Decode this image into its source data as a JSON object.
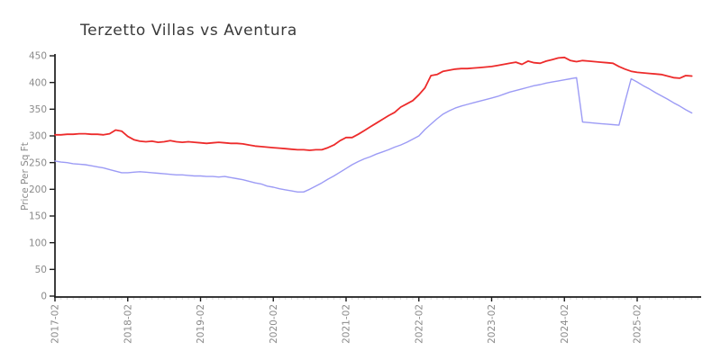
{
  "title": "Terzetto Villas vs Aventura",
  "chart_data": {
    "type": "line",
    "title": "Terzetto Villas vs Aventura",
    "xlabel": "",
    "ylabel": "Price Per Sq Ft",
    "ylim": [
      0,
      450
    ],
    "y_ticks": [
      0,
      50,
      100,
      150,
      200,
      250,
      300,
      350,
      400,
      450
    ],
    "x_tick_labels": [
      "2017-02",
      "2018-02",
      "2019-02",
      "2020-02",
      "2021-02",
      "2022-02",
      "2023-02",
      "2024-02",
      "2025-02"
    ],
    "grid": false,
    "legend": "none",
    "x": [
      "2017-02",
      "2017-03",
      "2017-04",
      "2017-05",
      "2017-06",
      "2017-07",
      "2017-08",
      "2017-09",
      "2017-10",
      "2017-11",
      "2017-12",
      "2018-01",
      "2018-02",
      "2018-03",
      "2018-04",
      "2018-05",
      "2018-06",
      "2018-07",
      "2018-08",
      "2018-09",
      "2018-10",
      "2018-11",
      "2018-12",
      "2019-01",
      "2019-02",
      "2019-03",
      "2019-04",
      "2019-05",
      "2019-06",
      "2019-07",
      "2019-08",
      "2019-09",
      "2019-10",
      "2019-11",
      "2019-12",
      "2020-01",
      "2020-02",
      "2020-03",
      "2020-04",
      "2020-05",
      "2020-06",
      "2020-07",
      "2020-08",
      "2020-09",
      "2020-10",
      "2020-11",
      "2020-12",
      "2021-01",
      "2021-02",
      "2021-03",
      "2021-04",
      "2021-05",
      "2021-06",
      "2021-07",
      "2021-08",
      "2021-09",
      "2021-10",
      "2021-11",
      "2021-12",
      "2022-01",
      "2022-02",
      "2022-03",
      "2022-04",
      "2022-05",
      "2022-06",
      "2022-07",
      "2022-08",
      "2022-09",
      "2022-10",
      "2022-11",
      "2022-12",
      "2023-01",
      "2023-02",
      "2023-03",
      "2023-04",
      "2023-05",
      "2023-06",
      "2023-07",
      "2023-08",
      "2023-09",
      "2023-10",
      "2023-11",
      "2023-12",
      "2024-01",
      "2024-02",
      "2024-03",
      "2024-04",
      "2024-05",
      "2024-06",
      "2024-07",
      "2024-08",
      "2024-09",
      "2024-10",
      "2024-11",
      "2024-12",
      "2025-01",
      "2025-02",
      "2025-03",
      "2025-04",
      "2025-05",
      "2025-06",
      "2025-07",
      "2025-08",
      "2025-09",
      "2025-10",
      "2025-11"
    ],
    "series": [
      {
        "name": "Terzetto Villas",
        "color": "#ed2b2b",
        "values": [
          302,
          302,
          303,
          303,
          304,
          304,
          303,
          303,
          302,
          304,
          311,
          309,
          299,
          293,
          290,
          289,
          290,
          288,
          289,
          291,
          289,
          288,
          289,
          288,
          287,
          286,
          287,
          288,
          287,
          286,
          286,
          285,
          283,
          281,
          280,
          279,
          278,
          277,
          276,
          275,
          274,
          274,
          273,
          274,
          274,
          278,
          283,
          291,
          297,
          297,
          303,
          310,
          317,
          324,
          331,
          338,
          344,
          354,
          360,
          366,
          377,
          390,
          413,
          415,
          421,
          423,
          425,
          426,
          426,
          427,
          428,
          429,
          430,
          432,
          434,
          436,
          438,
          434,
          440,
          437,
          436,
          440,
          443,
          446,
          447,
          441,
          439,
          441,
          440,
          439,
          438,
          437,
          436,
          430,
          425,
          421,
          419,
          418,
          417,
          416,
          415,
          412,
          409,
          408,
          413,
          412
        ]
      },
      {
        "name": "Aventura",
        "color": "#9c9bf5",
        "values": [
          253,
          251,
          250,
          248,
          247,
          246,
          244,
          242,
          240,
          237,
          234,
          231,
          231,
          232,
          233,
          232,
          231,
          230,
          229,
          228,
          227,
          227,
          226,
          225,
          225,
          224,
          224,
          223,
          224,
          222,
          220,
          218,
          215,
          212,
          210,
          206,
          204,
          201,
          199,
          197,
          195,
          195,
          200,
          206,
          212,
          219,
          225,
          232,
          239,
          246,
          252,
          257,
          261,
          266,
          270,
          274,
          279,
          283,
          288,
          294,
          300,
          312,
          322,
          332,
          341,
          347,
          352,
          356,
          359,
          362,
          365,
          368,
          371,
          374,
          378,
          382,
          385,
          388,
          391,
          394,
          396,
          399,
          401,
          403,
          405,
          407,
          409,
          326,
          325,
          324,
          323,
          322,
          321,
          320,
          364,
          407,
          401,
          394,
          388,
          381,
          375,
          369,
          362,
          356,
          349,
          343
        ]
      }
    ]
  }
}
